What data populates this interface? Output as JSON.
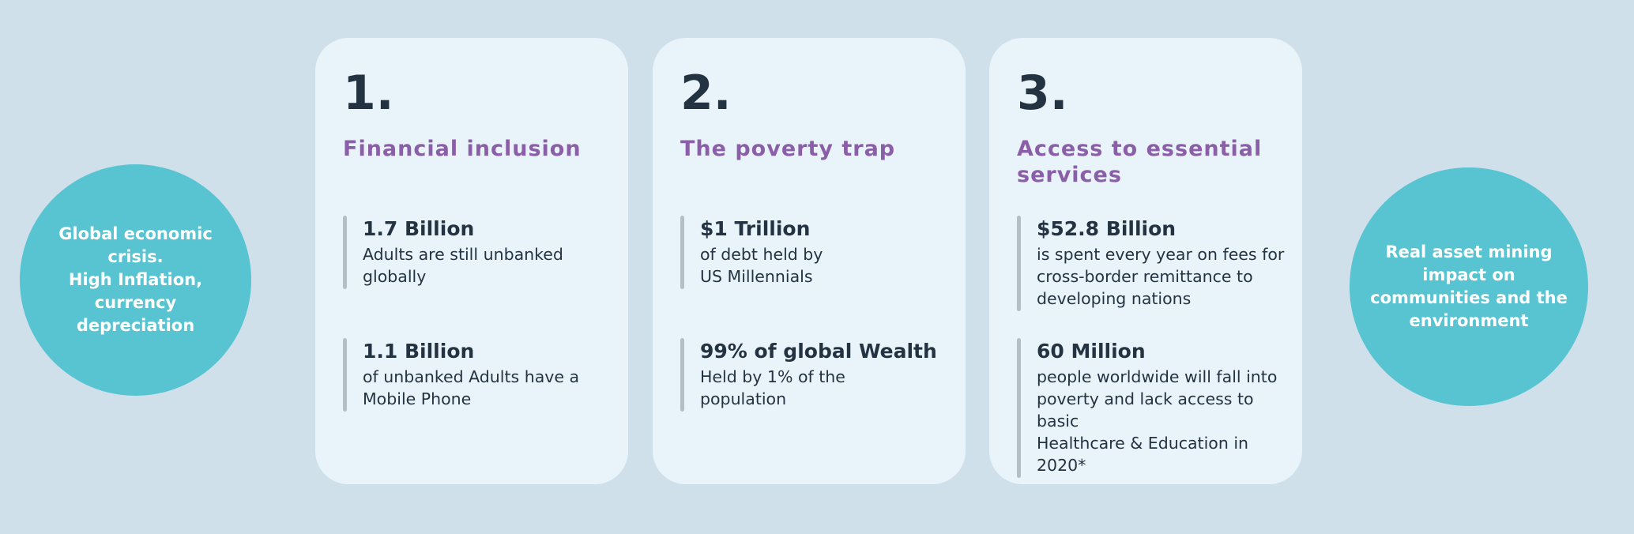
{
  "colors": {
    "page-bg": "#cfe0eb",
    "card-bg": "#e9f3fa",
    "bubble-teal": "#58c4d1",
    "heading-purple": "#8a5fa8",
    "text-navy": "#243341",
    "stat-bar-gray": "#b6bec5",
    "bubble-text": "#ffffff"
  },
  "left_circle": {
    "text": "Global economic\ncrisis.\nHigh Inflation,\ncurrency\ndepreciation"
  },
  "right_circle": {
    "text": "Real asset  mining\nimpact on\ncommunities and the\nenvironment"
  },
  "cards": [
    {
      "number": "1.",
      "heading": "Financial inclusion",
      "stats": [
        {
          "value": "1.7 Billion",
          "desc": "Adults are still unbanked\nglobally"
        },
        {
          "value": "1.1 Billion",
          "desc": "of unbanked Adults have a\nMobile Phone"
        }
      ]
    },
    {
      "number": "2.",
      "heading": "The poverty trap",
      "stats": [
        {
          "value": "$1 Trillion",
          "desc": "of debt held by\nUS Millennials"
        },
        {
          "value": "99% of global Wealth",
          "desc": "Held by 1% of the\npopulation"
        }
      ]
    },
    {
      "number": "3.",
      "heading": "Access to essential\nservices",
      "stats": [
        {
          "value": "$52.8 Billion",
          "desc": "is spent every year on fees for\ncross-border remittance to\ndeveloping nations"
        },
        {
          "value": "60 Million",
          "desc": "people worldwide will fall into\npoverty and lack access to basic\nHealthcare & Education in 2020*"
        }
      ]
    }
  ]
}
